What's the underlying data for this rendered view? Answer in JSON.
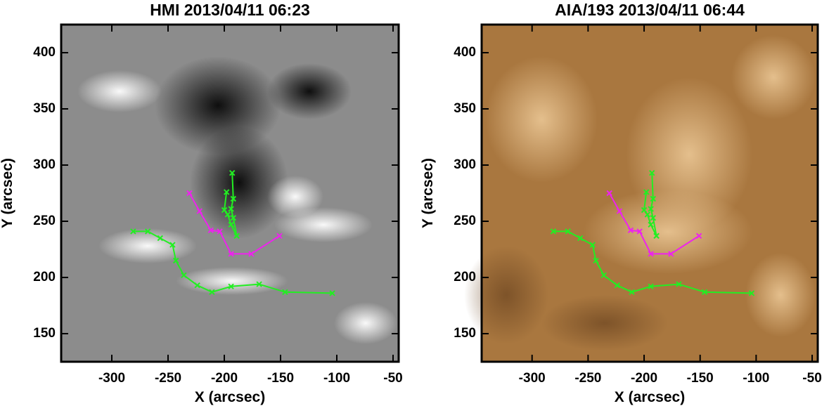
{
  "chart_data": [
    {
      "type": "line",
      "title": "HMI 2013/04/11 06:23",
      "x_label": "X (arcsec)",
      "y_label": "Y (arcsec)",
      "background": "#8c8c8c",
      "xlim": [
        -345,
        -45
      ],
      "ylim": [
        125,
        425
      ],
      "xticks": [
        -300,
        -250,
        -200,
        -150,
        -100,
        -50
      ],
      "yticks": [
        150,
        200,
        250,
        300,
        350,
        400
      ],
      "series": [
        {
          "color": "#22ee22",
          "x": [
            -281,
            -268,
            -257,
            -246,
            -243,
            -236,
            -224,
            -211,
            -194,
            -169,
            -146,
            -104
          ],
          "values": [
            241,
            241,
            235,
            229,
            215,
            202,
            193,
            187,
            192,
            194,
            187,
            186
          ]
        },
        {
          "color": "#ee22ee",
          "x": [
            -231,
            -222,
            -212,
            -204,
            -194,
            -176,
            -151
          ],
          "values": [
            275,
            259,
            242,
            241,
            221,
            221,
            237
          ]
        },
        {
          "color": "#22ee22",
          "x": [
            -193,
            -192,
            -194,
            -192,
            -189
          ],
          "values": [
            293,
            270,
            261,
            253,
            237
          ]
        },
        {
          "color": "#22ee22",
          "x": [
            -198,
            -200,
            -197,
            -194,
            -189
          ],
          "values": [
            276,
            260,
            256,
            247,
            237
          ]
        }
      ]
    },
    {
      "type": "line",
      "title": "AIA/193 2013/04/11 06:44",
      "x_label": "X (arcsec)",
      "y_label": "Y (arcsec)",
      "background": "#a9773f",
      "xlim": [
        -345,
        -45
      ],
      "ylim": [
        125,
        425
      ],
      "xticks": [
        -300,
        -250,
        -200,
        -150,
        -100,
        -50
      ],
      "yticks": [
        150,
        200,
        250,
        300,
        350,
        400
      ],
      "series": [
        {
          "color": "#22ee22",
          "x": [
            -281,
            -268,
            -257,
            -246,
            -243,
            -236,
            -224,
            -211,
            -194,
            -169,
            -146,
            -104
          ],
          "values": [
            241,
            241,
            235,
            229,
            215,
            202,
            193,
            187,
            192,
            194,
            187,
            186
          ]
        },
        {
          "color": "#ee22ee",
          "x": [
            -231,
            -222,
            -212,
            -204,
            -194,
            -176,
            -151
          ],
          "values": [
            275,
            259,
            242,
            241,
            221,
            221,
            237
          ]
        },
        {
          "color": "#22ee22",
          "x": [
            -193,
            -192,
            -194,
            -192,
            -189
          ],
          "values": [
            293,
            270,
            261,
            253,
            237
          ]
        },
        {
          "color": "#22ee22",
          "x": [
            -198,
            -200,
            -197,
            -194,
            -189
          ],
          "values": [
            276,
            260,
            256,
            247,
            237
          ]
        }
      ]
    }
  ]
}
